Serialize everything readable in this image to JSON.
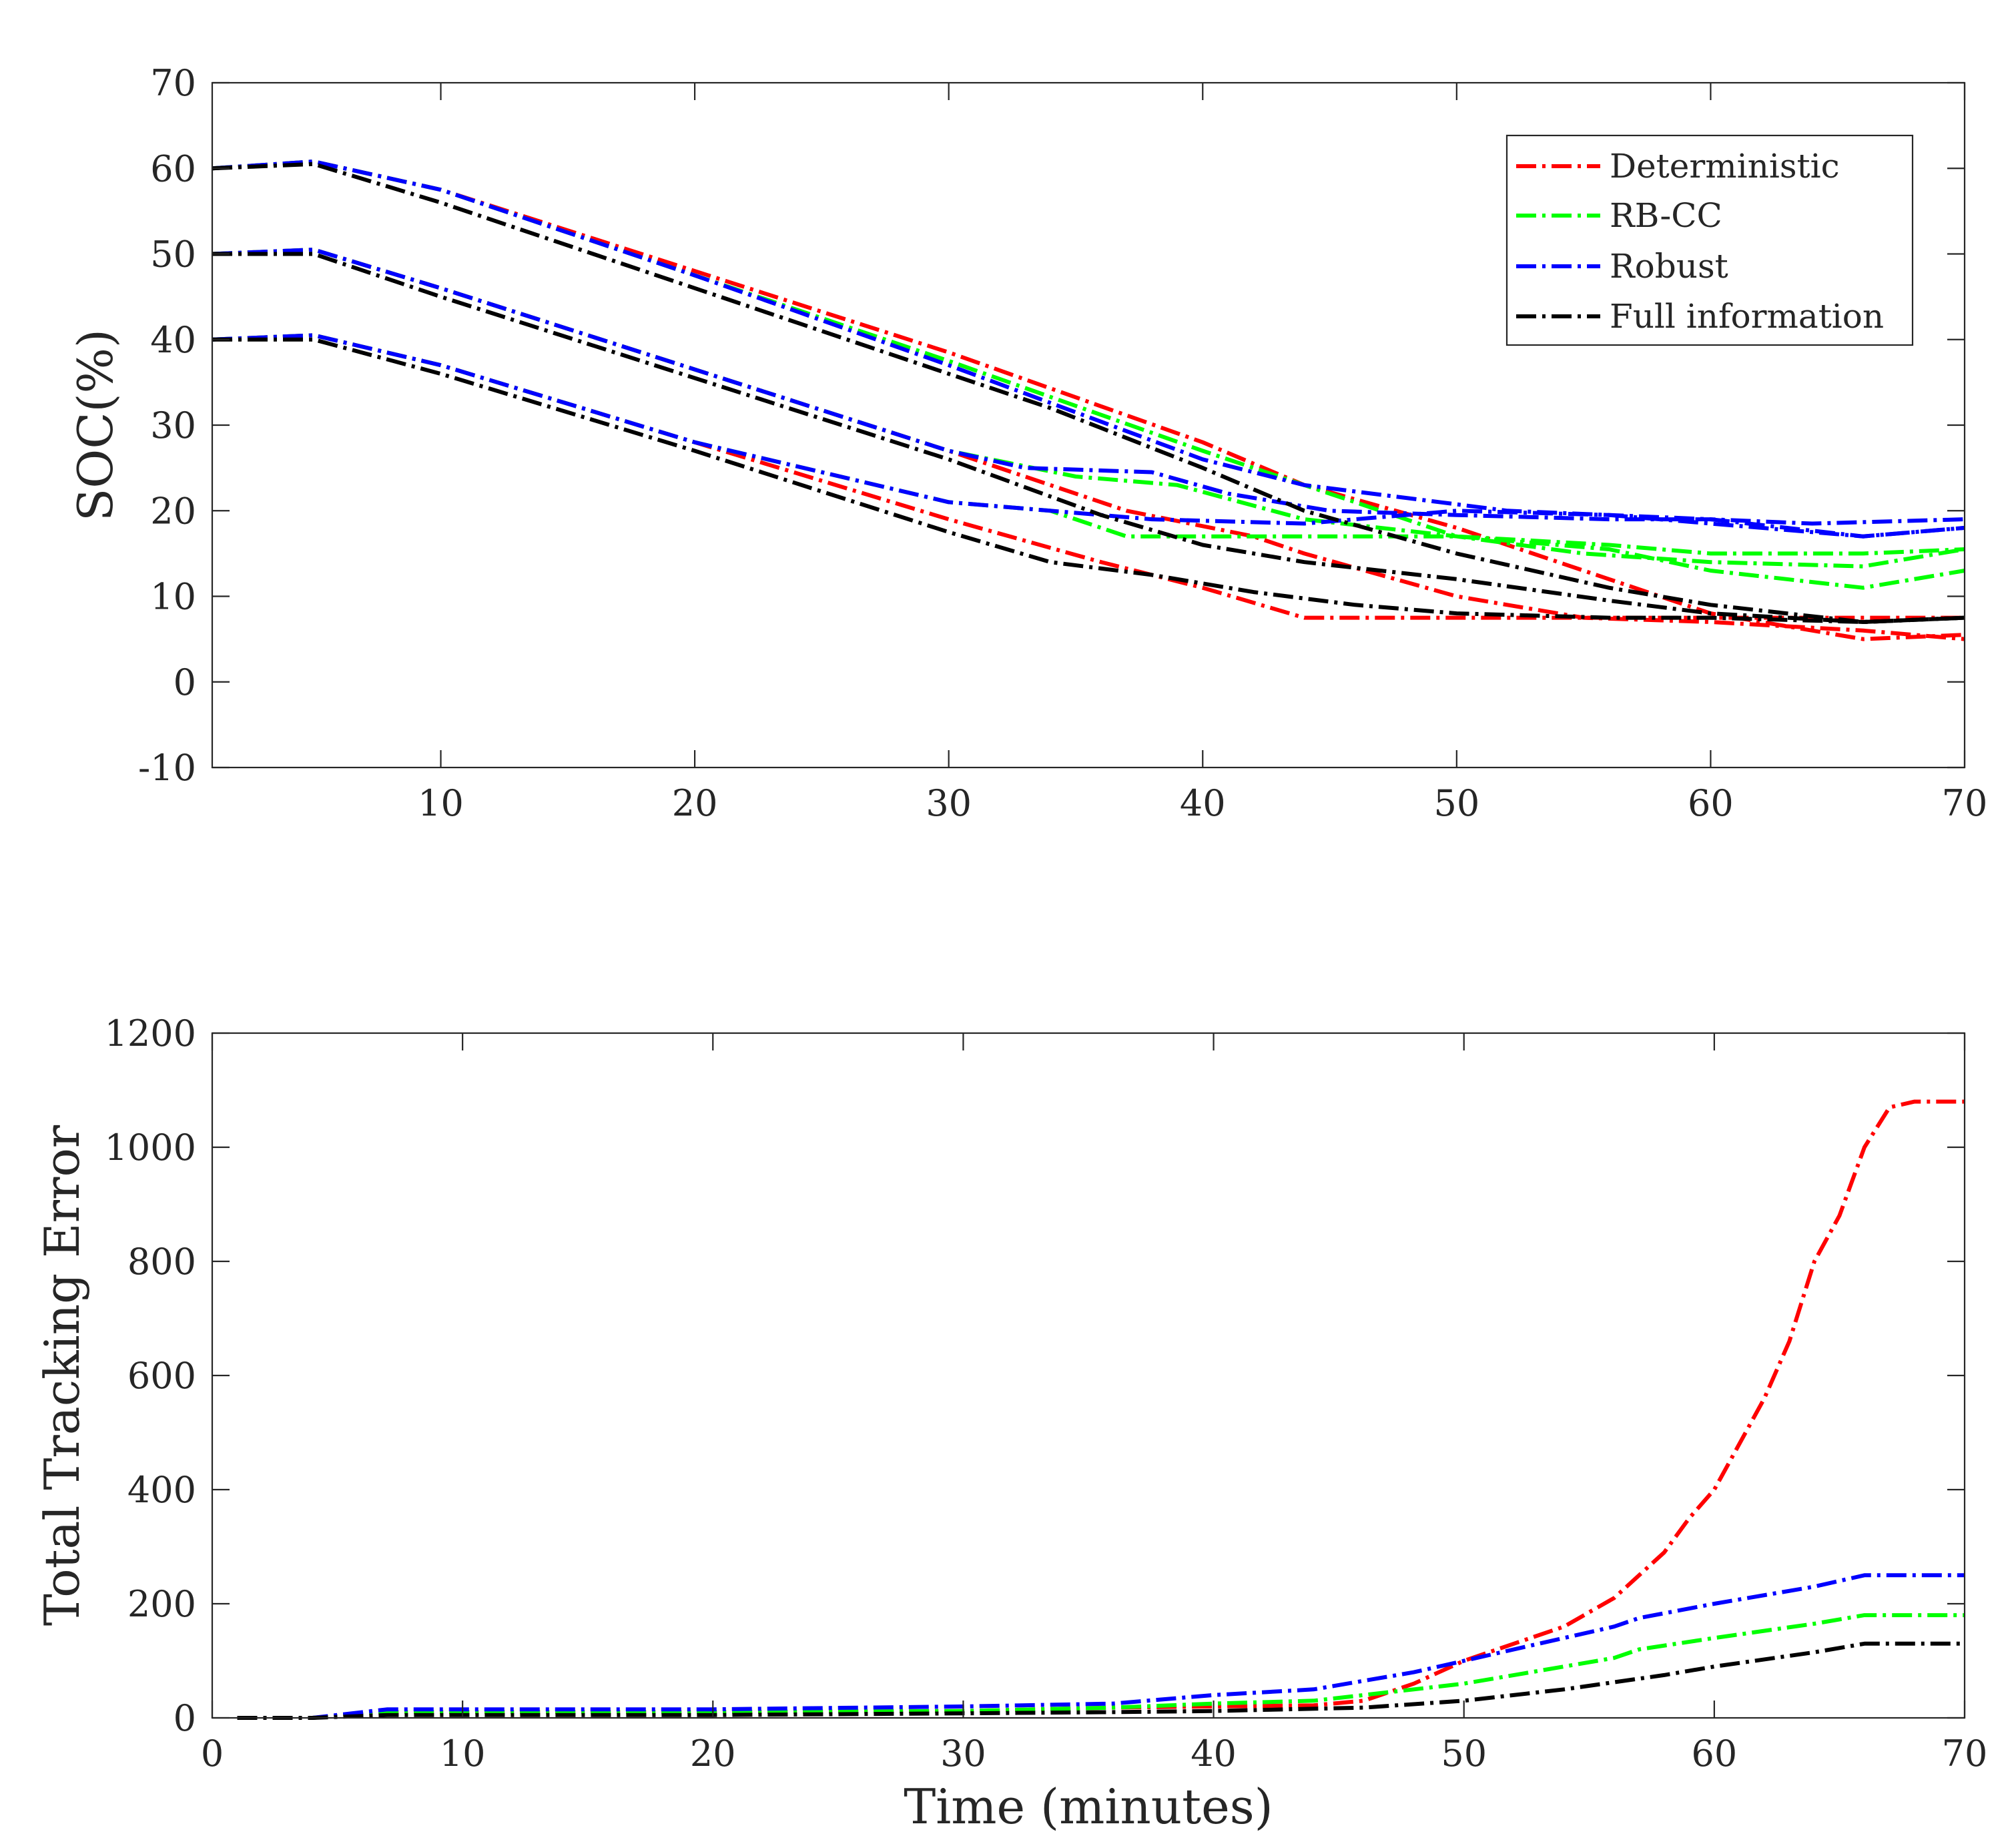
{
  "colors": {
    "Deterministic": "#ff0000",
    "RB-CC": "#00ff00",
    "Robust": "#0000ff",
    "Full information": "#000000"
  },
  "chart_data": [
    {
      "type": "line",
      "title": "",
      "xlabel": "",
      "ylabel": "SOC(%)",
      "xlim": [
        1,
        70
      ],
      "ylim": [
        -10,
        70
      ],
      "xticks": [
        10,
        20,
        30,
        40,
        50,
        60,
        70
      ],
      "yticks": [
        -10,
        0,
        10,
        20,
        30,
        40,
        50,
        60,
        70
      ],
      "legend": {
        "location": "top-right",
        "entries": [
          "Deterministic",
          "RB-CC",
          "Robust",
          "Full information"
        ]
      },
      "series": [
        {
          "name": "Deterministic",
          "x": [
            1,
            5,
            10,
            20,
            30,
            40,
            44,
            50,
            60,
            66,
            70
          ],
          "y": [
            60,
            60.8,
            57.5,
            48,
            38.5,
            28,
            23,
            18,
            8,
            5,
            5.5
          ]
        },
        {
          "name": "Deterministic",
          "x": [
            1,
            5,
            10,
            20,
            30,
            37,
            42,
            44,
            50,
            55,
            60,
            66,
            70
          ],
          "y": [
            50,
            50.5,
            46,
            36.5,
            27,
            20,
            17,
            15,
            10,
            7.5,
            7,
            6,
            5
          ]
        },
        {
          "name": "Deterministic",
          "x": [
            1,
            5,
            10,
            20,
            30,
            36,
            40,
            44,
            50,
            70
          ],
          "y": [
            40,
            40.5,
            37,
            28,
            19,
            14,
            11,
            7.5,
            7.5,
            7.5
          ]
        },
        {
          "name": "RB-CC",
          "x": [
            1,
            5,
            10,
            20,
            30,
            40,
            44,
            50,
            56,
            60,
            66,
            70
          ],
          "y": [
            60,
            60.8,
            57.5,
            47.5,
            37.5,
            27,
            23,
            17,
            16,
            15,
            15,
            15.5
          ]
        },
        {
          "name": "RB-CC",
          "x": [
            1,
            5,
            10,
            20,
            30,
            35,
            39,
            44,
            50,
            55,
            60,
            66,
            70
          ],
          "y": [
            50,
            50.5,
            46,
            36.5,
            27,
            24,
            23,
            19,
            17,
            15,
            14,
            13.5,
            15.5
          ]
        },
        {
          "name": "RB-CC",
          "x": [
            1,
            5,
            10,
            20,
            30,
            34,
            37,
            42,
            50,
            56,
            60,
            66,
            70
          ],
          "y": [
            40,
            40.5,
            37,
            28,
            21,
            20,
            17,
            17,
            17,
            15.5,
            13,
            11,
            13
          ]
        },
        {
          "name": "Robust",
          "x": [
            1,
            5,
            10,
            20,
            30,
            40,
            44,
            48,
            52,
            56,
            60,
            66,
            70
          ],
          "y": [
            60,
            60.8,
            57.5,
            47.5,
            37,
            26,
            23,
            21.5,
            20,
            19.5,
            18.5,
            17,
            18
          ]
        },
        {
          "name": "Robust",
          "x": [
            1,
            5,
            10,
            20,
            30,
            33,
            38,
            41,
            45,
            50,
            56,
            60,
            64,
            70
          ],
          "y": [
            50,
            50.5,
            46,
            36.5,
            27,
            25,
            24.5,
            22,
            20,
            19.5,
            19,
            19,
            18.5,
            19
          ]
        },
        {
          "name": "Robust",
          "x": [
            1,
            5,
            10,
            20,
            25,
            30,
            34,
            38,
            44,
            50,
            56,
            60,
            66,
            70
          ],
          "y": [
            40,
            40.5,
            37,
            28,
            24.5,
            21,
            20,
            19,
            18.5,
            20,
            19.5,
            19,
            17,
            18
          ]
        },
        {
          "name": "Full information",
          "x": [
            1,
            5,
            10,
            20,
            30,
            34,
            40,
            44,
            50,
            56,
            60,
            66,
            70
          ],
          "y": [
            60,
            60.5,
            56,
            46,
            36,
            32,
            25,
            20,
            15,
            11,
            9,
            7,
            7.5
          ]
        },
        {
          "name": "Full information",
          "x": [
            1,
            5,
            10,
            20,
            30,
            36,
            40,
            44,
            50,
            56,
            60,
            66,
            70
          ],
          "y": [
            50,
            50,
            45,
            35.5,
            26,
            19.5,
            16,
            14,
            12,
            9.5,
            8,
            7,
            7.5
          ]
        },
        {
          "name": "Full information",
          "x": [
            1,
            5,
            10,
            20,
            30,
            34,
            38,
            42,
            46,
            50,
            56,
            60,
            66,
            70
          ],
          "y": [
            40,
            40,
            36,
            27,
            17.5,
            14,
            12.5,
            10.5,
            9,
            8,
            7.5,
            7.5,
            7,
            7.5
          ]
        }
      ]
    },
    {
      "type": "line",
      "title": "",
      "xlabel": "Time (minutes)",
      "ylabel": "Total Tracking Error",
      "xlim": [
        0,
        70
      ],
      "ylim": [
        0,
        1200
      ],
      "xticks": [
        0,
        10,
        20,
        30,
        40,
        50,
        60,
        70
      ],
      "yticks": [
        0,
        200,
        400,
        600,
        800,
        1000,
        1200
      ],
      "series": [
        {
          "name": "Deterministic",
          "x": [
            1,
            4,
            7,
            10,
            20,
            30,
            36,
            44,
            46,
            48,
            50,
            52,
            54,
            56,
            58,
            59,
            60,
            62,
            63,
            64,
            65,
            66,
            67,
            68,
            70
          ],
          "y": [
            0,
            0,
            10,
            10,
            10,
            12,
            18,
            22,
            30,
            60,
            100,
            130,
            160,
            210,
            290,
            350,
            400,
            560,
            660,
            800,
            880,
            1000,
            1070,
            1080,
            1080
          ]
        },
        {
          "name": "RB-CC",
          "x": [
            1,
            4,
            7,
            10,
            20,
            30,
            36,
            40,
            44,
            48,
            50,
            54,
            56,
            57,
            60,
            64,
            66,
            70
          ],
          "y": [
            0,
            0,
            10,
            10,
            10,
            12,
            18,
            25,
            30,
            50,
            60,
            90,
            105,
            120,
            140,
            165,
            180,
            180
          ]
        },
        {
          "name": "Robust",
          "x": [
            1,
            4,
            7,
            10,
            20,
            30,
            36,
            40,
            44,
            48,
            50,
            54,
            56,
            57,
            60,
            64,
            66,
            70
          ],
          "y": [
            0,
            0,
            15,
            15,
            15,
            20,
            25,
            40,
            50,
            80,
            100,
            140,
            160,
            175,
            200,
            230,
            250,
            250
          ]
        },
        {
          "name": "Full information",
          "x": [
            1,
            4,
            7,
            10,
            20,
            30,
            36,
            40,
            46,
            50,
            54,
            58,
            60,
            64,
            66,
            70
          ],
          "y": [
            0,
            0,
            5,
            5,
            5,
            8,
            10,
            12,
            18,
            30,
            50,
            75,
            90,
            115,
            130,
            130
          ]
        }
      ]
    }
  ]
}
